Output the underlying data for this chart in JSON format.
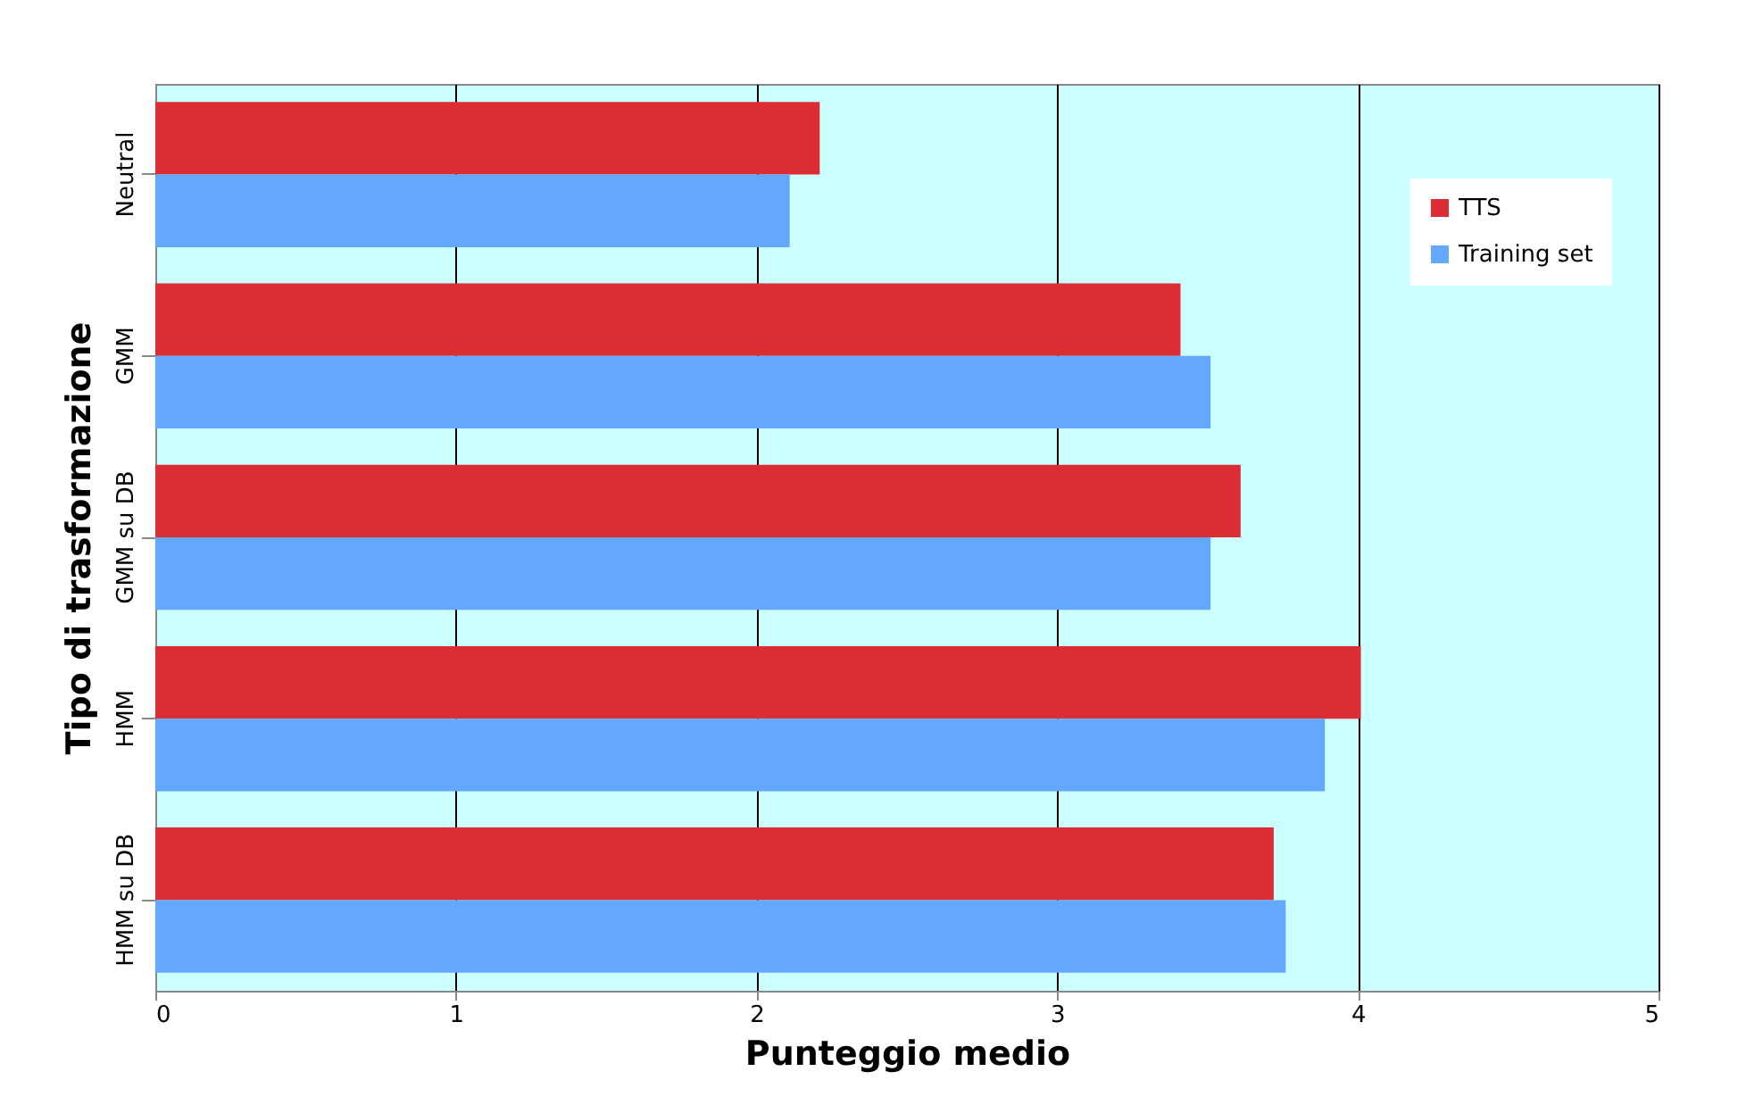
{
  "chart_data": {
    "type": "bar",
    "orientation": "horizontal",
    "xlabel": "Punteggio medio",
    "ylabel": "Tipo di trasformazione",
    "categories": [
      "Neutral",
      "GMM",
      "GMM su DB",
      "HMM",
      "HMM su DB"
    ],
    "series": [
      {
        "name": "TTS",
        "color": "#dc2c34",
        "values": [
          2.21,
          3.41,
          3.61,
          4.01,
          3.72
        ]
      },
      {
        "name": "Training set",
        "color": "#62a8fc",
        "values": [
          2.11,
          3.51,
          3.51,
          3.89,
          3.76
        ]
      }
    ],
    "xlim": [
      0,
      5
    ],
    "xticks": [
      0,
      1,
      2,
      3,
      4,
      5
    ],
    "grid": "x",
    "legend": "top right"
  }
}
